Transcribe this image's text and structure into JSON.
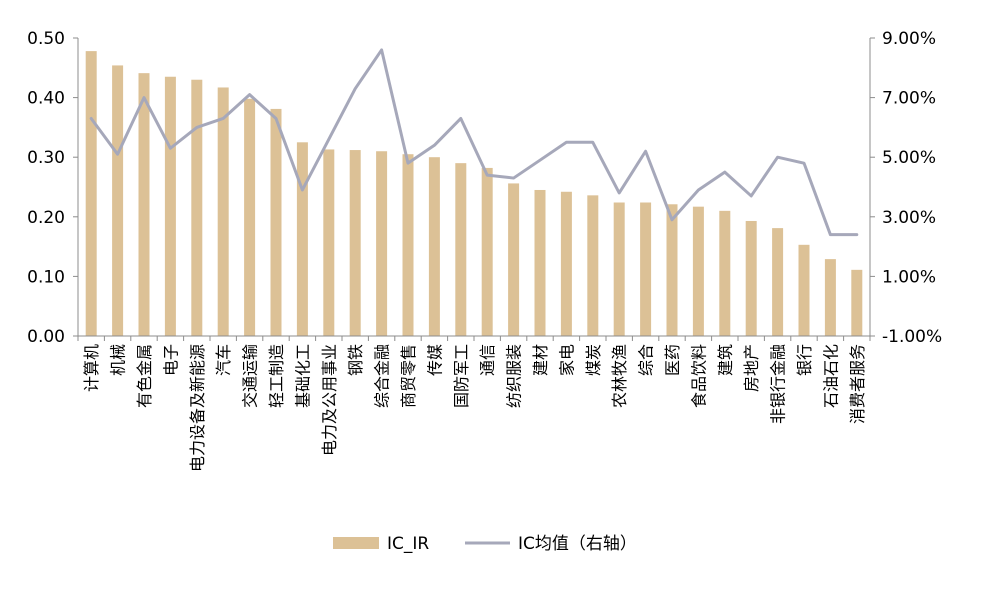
{
  "chart_data": {
    "type": "bar",
    "categories": [
      "计算机",
      "机械",
      "有色金属",
      "电子",
      "电力设备及新能源",
      "汽车",
      "交通运输",
      "轻工制造",
      "基础化工",
      "电力及公用事业",
      "钢铁",
      "综合金融",
      "商贸零售",
      "传媒",
      "国防军工",
      "通信",
      "纺织服装",
      "建材",
      "家电",
      "煤炭",
      "农林牧渔",
      "综合",
      "医药",
      "食品饮料",
      "建筑",
      "房地产",
      "非银行金融",
      "银行",
      "石油石化",
      "消费者服务"
    ],
    "series": [
      {
        "name": "IC_IR",
        "type": "bar",
        "axis": "left",
        "color": "#DCC196",
        "values": [
          0.478,
          0.454,
          0.441,
          0.435,
          0.43,
          0.417,
          0.398,
          0.381,
          0.325,
          0.313,
          0.312,
          0.31,
          0.305,
          0.3,
          0.29,
          0.282,
          0.256,
          0.245,
          0.242,
          0.236,
          0.224,
          0.224,
          0.221,
          0.217,
          0.21,
          0.193,
          0.181,
          0.153,
          0.129,
          0.111
        ]
      },
      {
        "name": "IC均值（右轴）",
        "type": "line",
        "axis": "right",
        "color": "#A6A8BA",
        "values": [
          6.3,
          5.1,
          7.0,
          5.3,
          6.0,
          6.3,
          7.1,
          6.3,
          3.9,
          5.6,
          7.3,
          8.6,
          4.8,
          5.4,
          6.3,
          4.4,
          4.3,
          4.9,
          5.5,
          5.5,
          3.8,
          5.2,
          2.9,
          3.9,
          4.5,
          3.7,
          5.0,
          4.8,
          2.4,
          2.4
        ]
      }
    ],
    "left_axis": {
      "ylim": [
        0.0,
        0.5
      ],
      "ticks": [
        "0.00",
        "0.10",
        "0.20",
        "0.30",
        "0.40",
        "0.50"
      ]
    },
    "right_axis": {
      "ylim": [
        -1.0,
        9.0
      ],
      "ticks": [
        "-1.00%",
        "1.00%",
        "3.00%",
        "5.00%",
        "7.00%",
        "9.00%"
      ]
    },
    "grid": false,
    "legend_position": "bottom-center",
    "legend": [
      {
        "label": "IC_IR",
        "kind": "bar"
      },
      {
        "label": "IC均值（右轴）",
        "kind": "line"
      }
    ]
  }
}
